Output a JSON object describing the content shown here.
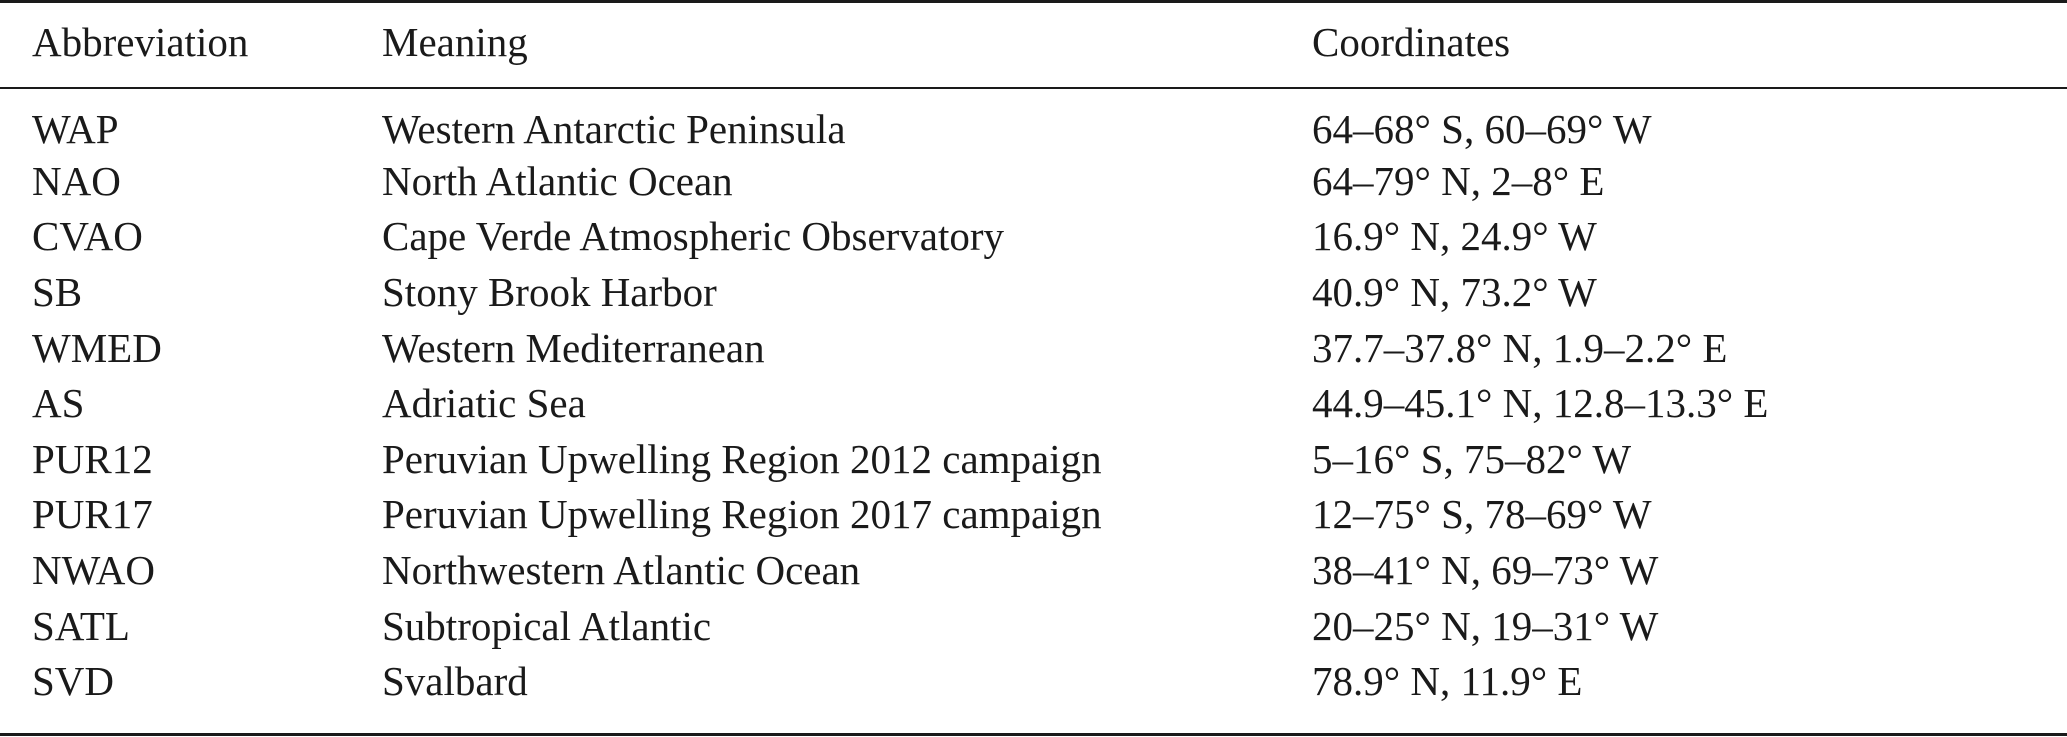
{
  "table": {
    "headers": [
      "Abbreviation",
      "Meaning",
      "Coordinates"
    ],
    "rows": [
      [
        "WAP",
        "Western Antarctic Peninsula",
        "64–68° S, 60–69° W"
      ],
      [
        "NAO",
        "North Atlantic Ocean",
        "64–79° N, 2–8° E"
      ],
      [
        "CVAO",
        "Cape Verde Atmospheric Observatory",
        "16.9° N, 24.9° W"
      ],
      [
        "SB",
        "Stony Brook Harbor",
        "40.9° N, 73.2° W"
      ],
      [
        "WMED",
        "Western Mediterranean",
        "37.7–37.8° N, 1.9–2.2° E"
      ],
      [
        "AS",
        "Adriatic Sea",
        "44.9–45.1° N, 12.8–13.3° E"
      ],
      [
        "PUR12",
        "Peruvian Upwelling Region 2012 campaign",
        "5–16° S, 75–82° W"
      ],
      [
        "PUR17",
        "Peruvian Upwelling Region 2017 campaign",
        "12–75° S, 78–69° W"
      ],
      [
        "NWAO",
        "Northwestern Atlantic Ocean",
        "38–41° N, 69–73° W"
      ],
      [
        "SATL",
        "Subtropical Atlantic",
        "20–25° N, 19–31° W"
      ],
      [
        "SVD",
        "Svalbard",
        "78.9° N, 11.9° E"
      ]
    ]
  }
}
